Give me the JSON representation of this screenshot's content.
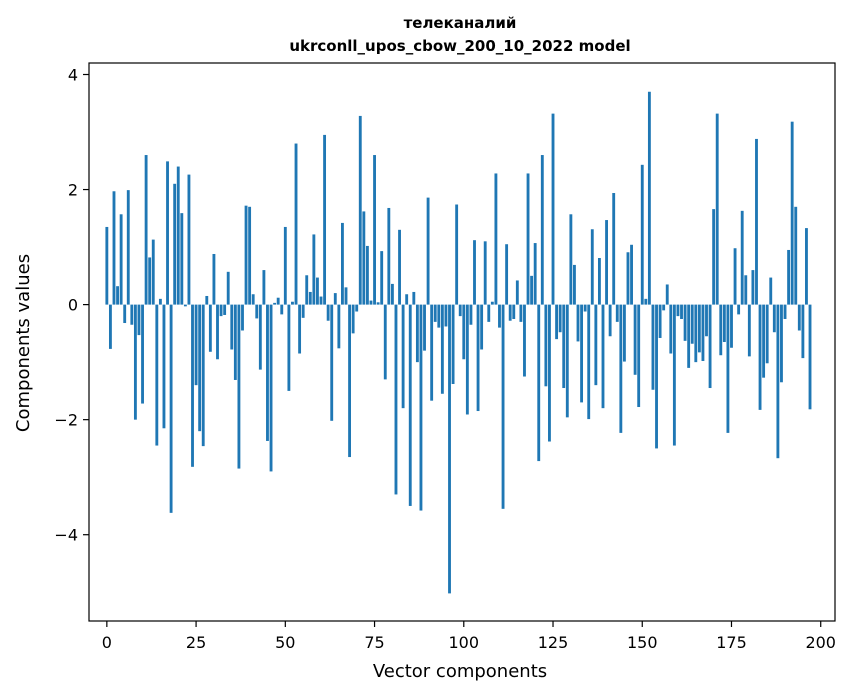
{
  "chart_data": {
    "type": "bar",
    "title": "телеканалий",
    "subtitle": "ukrconll_upos_cbow_200_10_2022 model",
    "xlabel": "Vector components",
    "ylabel": "Components values",
    "xlim": [
      -5,
      204
    ],
    "ylim": [
      -5.5,
      4.2
    ],
    "xticks": [
      0,
      25,
      50,
      75,
      100,
      125,
      150,
      175,
      200
    ],
    "yticks": [
      -4,
      -2,
      0,
      2,
      4
    ],
    "xtick_labels": [
      "0",
      "25",
      "50",
      "75",
      "100",
      "125",
      "150",
      "175",
      "200"
    ],
    "ytick_labels": [
      "−4",
      "−2",
      "0",
      "2",
      "4"
    ],
    "bar_color": "#1f77b4",
    "values": [
      1.35,
      -0.77,
      1.97,
      0.32,
      1.57,
      -0.32,
      1.99,
      -0.35,
      -2.0,
      -0.53,
      -1.72,
      2.6,
      0.82,
      1.13,
      -2.45,
      0.1,
      -2.15,
      2.49,
      -3.62,
      2.1,
      2.4,
      1.59,
      -0.03,
      2.26,
      -2.82,
      -1.4,
      -2.2,
      -2.46,
      0.15,
      -0.82,
      0.88,
      -0.95,
      -0.2,
      -0.18,
      0.57,
      -0.78,
      -1.31,
      -2.85,
      -0.45,
      1.72,
      1.7,
      0.18,
      -0.24,
      -1.13,
      0.6,
      -2.37,
      -2.9,
      0.03,
      0.12,
      -0.17,
      1.35,
      -1.5,
      0.05,
      2.8,
      -0.85,
      -0.23,
      0.51,
      0.22,
      1.22,
      0.47,
      0.14,
      2.95,
      -0.28,
      -2.02,
      0.2,
      -0.76,
      1.42,
      0.3,
      -2.65,
      -0.5,
      -0.12,
      3.28,
      1.62,
      1.02,
      0.07,
      2.6,
      0.04,
      0.93,
      -1.3,
      1.68,
      0.36,
      -3.3,
      1.3,
      -1.8,
      0.18,
      -3.5,
      0.22,
      -1.0,
      -3.58,
      -0.8,
      1.86,
      -1.67,
      -0.3,
      -0.4,
      -1.55,
      -0.38,
      -5.02,
      -1.38,
      1.74,
      -0.2,
      -0.95,
      -1.91,
      -0.35,
      1.12,
      -1.85,
      -0.78,
      1.1,
      -0.3,
      0.05,
      2.28,
      -0.4,
      -3.55,
      1.05,
      -0.28,
      -0.25,
      0.42,
      -0.3,
      -1.25,
      2.28,
      0.5,
      1.07,
      -2.72,
      2.6,
      -1.42,
      -2.38,
      3.32,
      -0.6,
      -0.48,
      -1.45,
      -1.96,
      1.57,
      0.69,
      -0.64,
      -1.7,
      -0.12,
      -1.99,
      1.31,
      -1.4,
      0.81,
      -1.8,
      1.47,
      -0.55,
      1.94,
      -0.3,
      -2.23,
      -0.99,
      0.91,
      1.04,
      -1.22,
      -1.78,
      2.43,
      0.1,
      3.7,
      -1.48,
      -2.5,
      -0.58,
      -0.1,
      0.35,
      -0.85,
      -2.45,
      -0.2,
      -0.25,
      -0.63,
      -1.1,
      -0.68,
      -1.0,
      -0.83,
      -0.98,
      -0.55,
      -1.45,
      1.66,
      3.32,
      -0.88,
      -0.65,
      -2.23,
      -0.75,
      0.98,
      -0.17,
      1.63,
      0.51,
      -0.9,
      0.6,
      2.88,
      -1.83,
      -1.27,
      -1.02,
      0.47,
      -0.48,
      -2.67,
      -1.35,
      -0.25,
      0.95,
      3.18,
      1.7,
      -0.45,
      -0.93,
      1.33,
      -1.82
    ]
  }
}
